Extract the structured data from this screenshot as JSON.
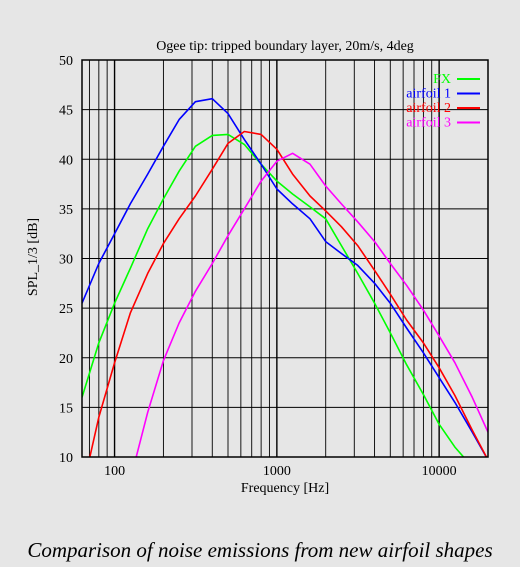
{
  "caption": "Comparison of noise emissions from new airfoil shapes",
  "colors": {
    "background": "#e6e6e6",
    "frame": "#000000"
  },
  "chart_data": {
    "type": "line",
    "title": "Ogee tip: tripped boundary layer, 20m/s, 4deg",
    "xlabel": "Frequency [Hz]",
    "ylabel": "SPL_1/3 [dB]",
    "xscale": "log",
    "xlim": [
      63,
      20000
    ],
    "ylim": [
      10,
      50
    ],
    "xticks": [
      100,
      1000,
      10000
    ],
    "xtick_labels": [
      "100",
      "1000",
      "10000"
    ],
    "yticks": [
      10,
      15,
      20,
      25,
      30,
      35,
      40,
      45,
      50
    ],
    "grid": true,
    "legend": "top-right",
    "series": [
      {
        "name": "FX",
        "color": "#00ff00",
        "x": [
          63,
          80,
          100,
          125,
          160,
          200,
          250,
          315,
          400,
          500,
          630,
          800,
          1000,
          1250,
          1600,
          2000,
          2500,
          3150,
          4000,
          5000,
          6300,
          8000,
          10000,
          12500,
          14500
        ],
        "y": [
          16,
          21.5,
          25.5,
          29,
          33,
          36,
          38.8,
          41.3,
          42.4,
          42.5,
          41.5,
          39.5,
          37.8,
          36.5,
          35.2,
          34,
          31.3,
          28.5,
          25.5,
          22.5,
          19.3,
          16.3,
          13.3,
          11,
          9.8
        ]
      },
      {
        "name": "airfoil 1",
        "color": "#0000ff",
        "x": [
          63,
          80,
          100,
          125,
          160,
          200,
          250,
          315,
          400,
          500,
          630,
          800,
          1000,
          1250,
          1600,
          2000,
          2500,
          3150,
          4000,
          5000,
          6300,
          8000,
          10000,
          12500,
          16000,
          20000
        ],
        "y": [
          25.5,
          29.5,
          32.5,
          35.5,
          38.5,
          41.3,
          44,
          45.8,
          46.1,
          44.6,
          42,
          39.5,
          37,
          35.5,
          34,
          31.7,
          30.5,
          29.3,
          27.5,
          25.5,
          23,
          20.5,
          18,
          15.5,
          12.5,
          9.7
        ]
      },
      {
        "name": "airfoil 2",
        "color": "#ff0000",
        "x": [
          70,
          80,
          100,
          125,
          160,
          200,
          250,
          315,
          400,
          500,
          630,
          800,
          1000,
          1250,
          1600,
          2000,
          2500,
          3150,
          4000,
          5000,
          6300,
          8000,
          10000,
          12500,
          16000,
          20000
        ],
        "y": [
          9.8,
          14,
          19.5,
          24.5,
          28.5,
          31.5,
          34,
          36.3,
          39,
          41.6,
          42.8,
          42.5,
          41,
          38.5,
          36.3,
          34.8,
          33.2,
          31.3,
          28.8,
          26.4,
          23.8,
          21.5,
          19,
          16.2,
          12.7,
          9.7
        ]
      },
      {
        "name": "airfoil 3",
        "color": "#ff00ff",
        "x": [
          135,
          160,
          200,
          250,
          315,
          400,
          500,
          630,
          800,
          1000,
          1250,
          1600,
          2000,
          2500,
          3150,
          4000,
          5000,
          6300,
          8000,
          10000,
          12500,
          16000,
          20000
        ],
        "y": [
          9.8,
          14.5,
          19.7,
          23.5,
          26.7,
          29.5,
          32.3,
          35,
          37.8,
          39.8,
          40.6,
          39.5,
          37.3,
          35.5,
          33.7,
          31.7,
          29.5,
          27.3,
          24.8,
          22.2,
          19.5,
          16,
          12.5
        ]
      }
    ]
  }
}
